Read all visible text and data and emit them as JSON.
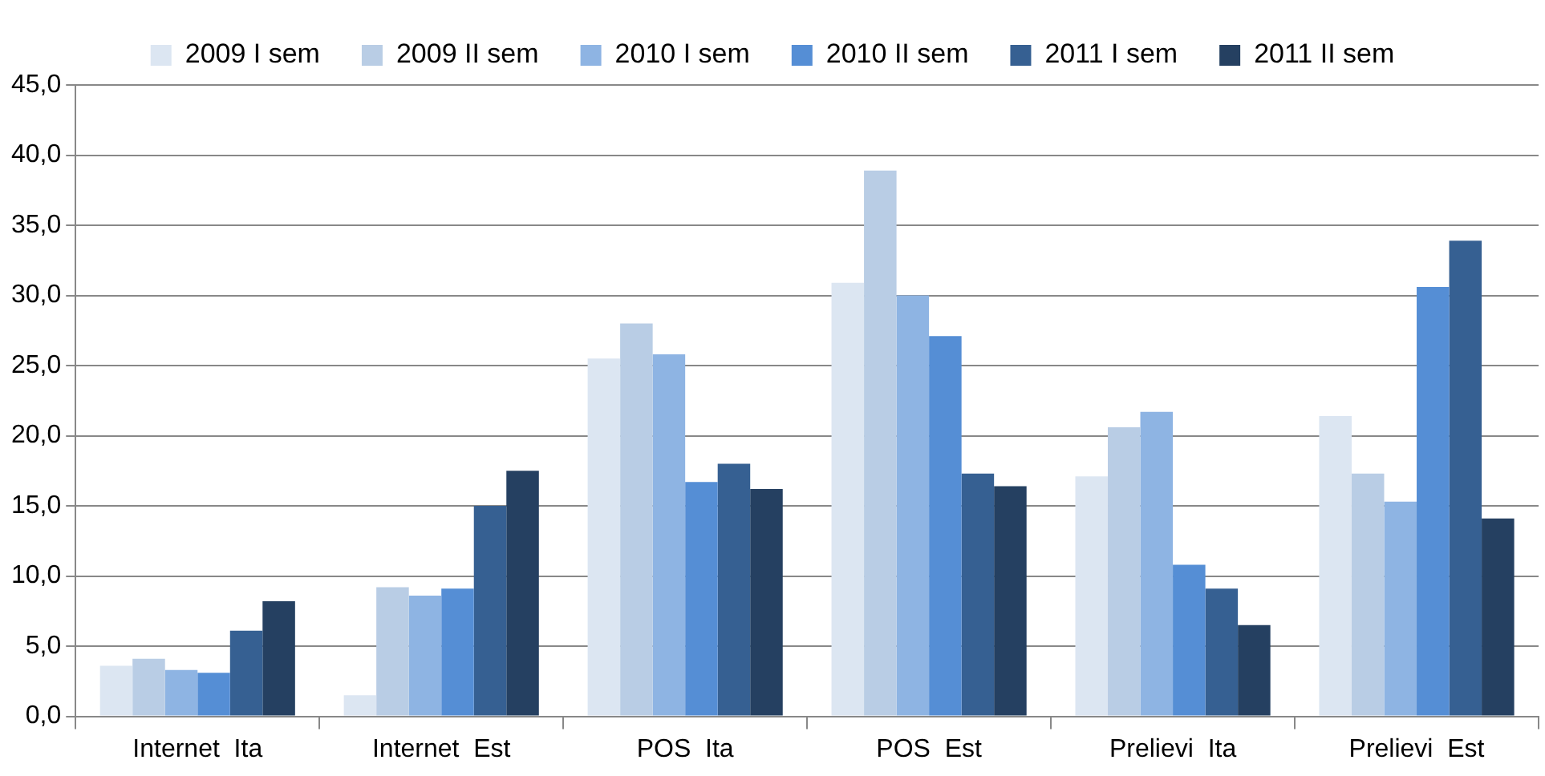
{
  "chart_data": {
    "type": "bar",
    "categories": [
      "Internet  Ita",
      "Internet  Est",
      "POS  Ita",
      "POS  Est",
      "Prelievi  Ita",
      "Prelievi  Est"
    ],
    "series": [
      {
        "name": "2009 I sem",
        "color": "#dce6f2",
        "values": [
          3.6,
          1.5,
          25.5,
          30.9,
          17.1,
          21.4
        ]
      },
      {
        "name": "2009 II sem",
        "color": "#b9cde5",
        "values": [
          4.1,
          9.2,
          28.0,
          38.9,
          20.6,
          17.3
        ]
      },
      {
        "name": "2010 I sem",
        "color": "#8eb4e3",
        "values": [
          3.3,
          8.6,
          25.8,
          30.0,
          21.7,
          15.3
        ]
      },
      {
        "name": "2010 II sem",
        "color": "#558ed5",
        "values": [
          3.1,
          9.1,
          16.7,
          27.1,
          10.8,
          30.6
        ]
      },
      {
        "name": "2011 I sem",
        "color": "#366092",
        "values": [
          6.1,
          15.0,
          18.0,
          17.3,
          9.1,
          33.9
        ]
      },
      {
        "name": "2011 II sem",
        "color": "#254061",
        "values": [
          8.2,
          17.5,
          16.2,
          16.4,
          6.5,
          14.1
        ]
      }
    ],
    "ylim": [
      0,
      45
    ],
    "yticks": [
      {
        "value": 0,
        "label": "0,0"
      },
      {
        "value": 5,
        "label": "5,0"
      },
      {
        "value": 10,
        "label": "10,0"
      },
      {
        "value": 15,
        "label": "15,0"
      },
      {
        "value": 20,
        "label": "20,0"
      },
      {
        "value": 25,
        "label": "25,0"
      },
      {
        "value": 30,
        "label": "30,0"
      },
      {
        "value": 35,
        "label": "35,0"
      },
      {
        "value": 40,
        "label": "40,0"
      },
      {
        "value": 45,
        "label": "45,0"
      }
    ],
    "grid": "y",
    "legend": "top"
  }
}
